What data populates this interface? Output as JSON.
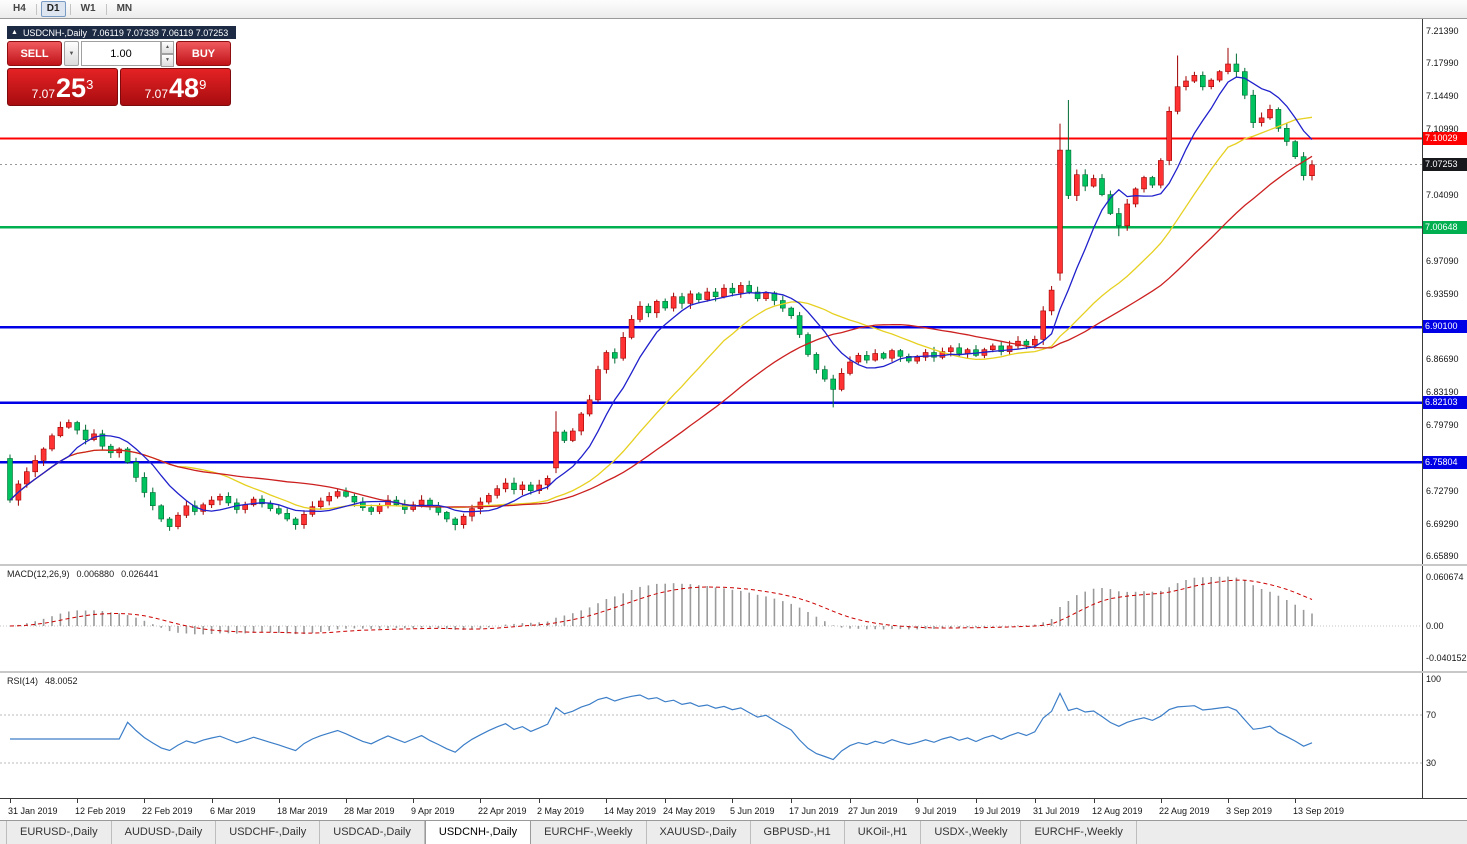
{
  "icons": {
    "collapse": "▲",
    "dropdown": "▼",
    "spin_up": "▲",
    "spin_down": "▼"
  },
  "toolbar": {
    "timeframes": [
      {
        "label": "H4",
        "active": false
      },
      {
        "label": "D1",
        "active": true
      },
      {
        "label": "W1",
        "active": false
      },
      {
        "label": "MN",
        "active": false
      }
    ]
  },
  "chart_header": {
    "title": "USDCNH-,Daily",
    "ohlc": "7.06119 7.07339 7.06119 7.07253"
  },
  "trade_panel": {
    "sell_label": "SELL",
    "buy_label": "BUY",
    "lot_value": "1.00",
    "sell_price": {
      "big_figure": "7.07",
      "pips": "25",
      "pipette": "3"
    },
    "buy_price": {
      "big_figure": "7.07",
      "pips": "48",
      "pipette": "9"
    }
  },
  "chart_data": {
    "type": "candlestick",
    "symbol": "USDCNH-",
    "timeframe": "Daily",
    "ohlc_display": {
      "open": 7.06119,
      "high": 7.07339,
      "low": 7.06119,
      "close": 7.07253
    },
    "price_axis": {
      "max": 7.2139,
      "min": 6.6589,
      "labels": [
        "7.21390",
        "7.17990",
        "7.14490",
        "7.10990",
        "7.04090",
        "6.97090",
        "6.93590",
        "6.86690",
        "6.83190",
        "6.79790",
        "6.72790",
        "6.69290",
        "6.65890"
      ]
    },
    "x_labels": [
      {
        "text": "31 Jan 2019",
        "index": 0
      },
      {
        "text": "12 Feb 2019",
        "index": 8
      },
      {
        "text": "22 Feb 2019",
        "index": 16
      },
      {
        "text": "6 Mar 2019",
        "index": 24
      },
      {
        "text": "18 Mar 2019",
        "index": 32
      },
      {
        "text": "28 Mar 2019",
        "index": 40
      },
      {
        "text": "9 Apr 2019",
        "index": 48
      },
      {
        "text": "22 Apr 2019",
        "index": 56
      },
      {
        "text": "2 May 2019",
        "index": 63
      },
      {
        "text": "14 May 2019",
        "index": 71
      },
      {
        "text": "24 May 2019",
        "index": 78
      },
      {
        "text": "5 Jun 2019",
        "index": 86
      },
      {
        "text": "17 Jun 2019",
        "index": 93
      },
      {
        "text": "27 Jun 2019",
        "index": 100
      },
      {
        "text": "9 Jul 2019",
        "index": 108
      },
      {
        "text": "19 Jul 2019",
        "index": 115
      },
      {
        "text": "31 Jul 2019",
        "index": 122
      },
      {
        "text": "12 Aug 2019",
        "index": 129
      },
      {
        "text": "22 Aug 2019",
        "index": 137
      },
      {
        "text": "3 Sep 2019",
        "index": 145
      },
      {
        "text": "13 Sep 2019",
        "index": 153
      }
    ],
    "closes": [
      6.718,
      6.735,
      6.748,
      6.76,
      6.772,
      6.786,
      6.795,
      6.8,
      6.792,
      6.782,
      6.788,
      6.775,
      6.768,
      6.772,
      6.758,
      6.742,
      6.726,
      6.712,
      6.698,
      6.69,
      6.702,
      6.712,
      6.706,
      6.713,
      6.718,
      6.722,
      6.715,
      6.708,
      6.713,
      6.719,
      6.714,
      6.709,
      6.704,
      6.698,
      6.692,
      6.703,
      6.711,
      6.717,
      6.722,
      6.727,
      6.722,
      6.716,
      6.71,
      6.706,
      6.712,
      6.718,
      6.713,
      6.708,
      6.713,
      6.718,
      6.711,
      6.705,
      6.698,
      6.692,
      6.701,
      6.709,
      6.716,
      6.723,
      6.73,
      6.736,
      6.729,
      6.734,
      6.728,
      6.734,
      6.741,
      6.79,
      6.781,
      6.791,
      6.809,
      6.824,
      6.856,
      6.874,
      6.868,
      6.89,
      6.909,
      6.923,
      6.916,
      6.928,
      6.921,
      6.933,
      6.926,
      6.936,
      6.93,
      6.938,
      6.933,
      6.942,
      6.937,
      6.945,
      6.938,
      6.931,
      6.937,
      6.929,
      6.921,
      6.913,
      6.893,
      6.872,
      6.856,
      6.846,
      6.835,
      6.852,
      6.864,
      6.871,
      6.866,
      6.873,
      6.868,
      6.876,
      6.87,
      6.865,
      6.869,
      6.874,
      6.869,
      6.875,
      6.879,
      6.873,
      6.877,
      6.871,
      6.877,
      6.881,
      6.875,
      6.881,
      6.886,
      6.882,
      6.888,
      6.918,
      6.94,
      7.088,
      7.04,
      7.062,
      7.05,
      7.058,
      7.041,
      7.021,
      7.008,
      7.031,
      7.047,
      7.059,
      7.051,
      7.077,
      7.129,
      7.155,
      7.161,
      7.167,
      7.155,
      7.162,
      7.171,
      7.179,
      7.171,
      7.146,
      7.117,
      7.122,
      7.131,
      7.111,
      7.097,
      7.081,
      7.061,
      7.0725
    ],
    "special_candles": {
      "0": {
        "o": 6.762
      },
      "65": {
        "o": 6.752,
        "h": 6.812
      },
      "94": {
        "h": 6.917
      },
      "98": {
        "l": 6.816
      },
      "125": {
        "o": 6.958,
        "h": 7.116,
        "l": 6.95
      },
      "126": {
        "h": 7.141
      },
      "132": {
        "l": 6.997
      },
      "139": {
        "h": 7.188
      },
      "145": {
        "h": 7.196
      },
      "146": {
        "h": 7.19
      }
    },
    "levels": [
      {
        "price": 7.10029,
        "label": "7.10029",
        "color": "#ff0000",
        "width": 2
      },
      {
        "price": 7.00648,
        "label": "7.00648",
        "color": "#00b050",
        "width": 2.5
      },
      {
        "price": 6.901,
        "label": "6.90100",
        "color": "#0000e6",
        "width": 2.5
      },
      {
        "price": 6.82103,
        "label": "6.82103",
        "color": "#0000e6",
        "width": 2.5
      },
      {
        "price": 6.75804,
        "label": "6.75804",
        "color": "#0000e6",
        "width": 2.5
      }
    ],
    "current_price": {
      "value": 7.07253,
      "label": "7.07253",
      "color": "#16181c"
    },
    "candle_colors": {
      "up": "#fe3232",
      "up_border": "#9e0000",
      "down": "#00c25e",
      "down_border": "#006b34"
    },
    "moving_averages": [
      {
        "name": "mid",
        "period": 21,
        "color": "#e6d020"
      },
      {
        "name": "slow",
        "period": 34,
        "color": "#cc2020"
      },
      {
        "name": "fast",
        "period": 8,
        "color": "#2020cc"
      }
    ],
    "macd": {
      "label": "MACD(12,26,9)",
      "value_1": "0.006880",
      "value_2": "0.026441",
      "params": [
        12,
        26,
        9
      ],
      "axis_labels": [
        "0.060674",
        "0.00",
        "-0.040152"
      ],
      "axis_values": [
        0.060674,
        0,
        -0.040152
      ]
    },
    "rsi": {
      "label": "RSI(14)",
      "value": "48.0052",
      "period": 14,
      "axis_labels": [
        "100",
        "70",
        "30"
      ],
      "levels": [
        70,
        30
      ]
    }
  },
  "tabs": [
    {
      "label": "EURUSD-,Daily",
      "active": false
    },
    {
      "label": "AUDUSD-,Daily",
      "active": false
    },
    {
      "label": "USDCHF-,Daily",
      "active": false
    },
    {
      "label": "USDCAD-,Daily",
      "active": false
    },
    {
      "label": "USDCNH-,Daily",
      "active": true
    },
    {
      "label": "EURCHF-,Weekly",
      "active": false
    },
    {
      "label": "XAUUSD-,Daily",
      "active": false
    },
    {
      "label": "GBPUSD-,H1",
      "active": false
    },
    {
      "label": "UKOil-,H1",
      "active": false
    },
    {
      "label": "USDX-,Weekly",
      "active": false
    },
    {
      "label": "EURCHF-,Weekly",
      "active": false
    }
  ]
}
